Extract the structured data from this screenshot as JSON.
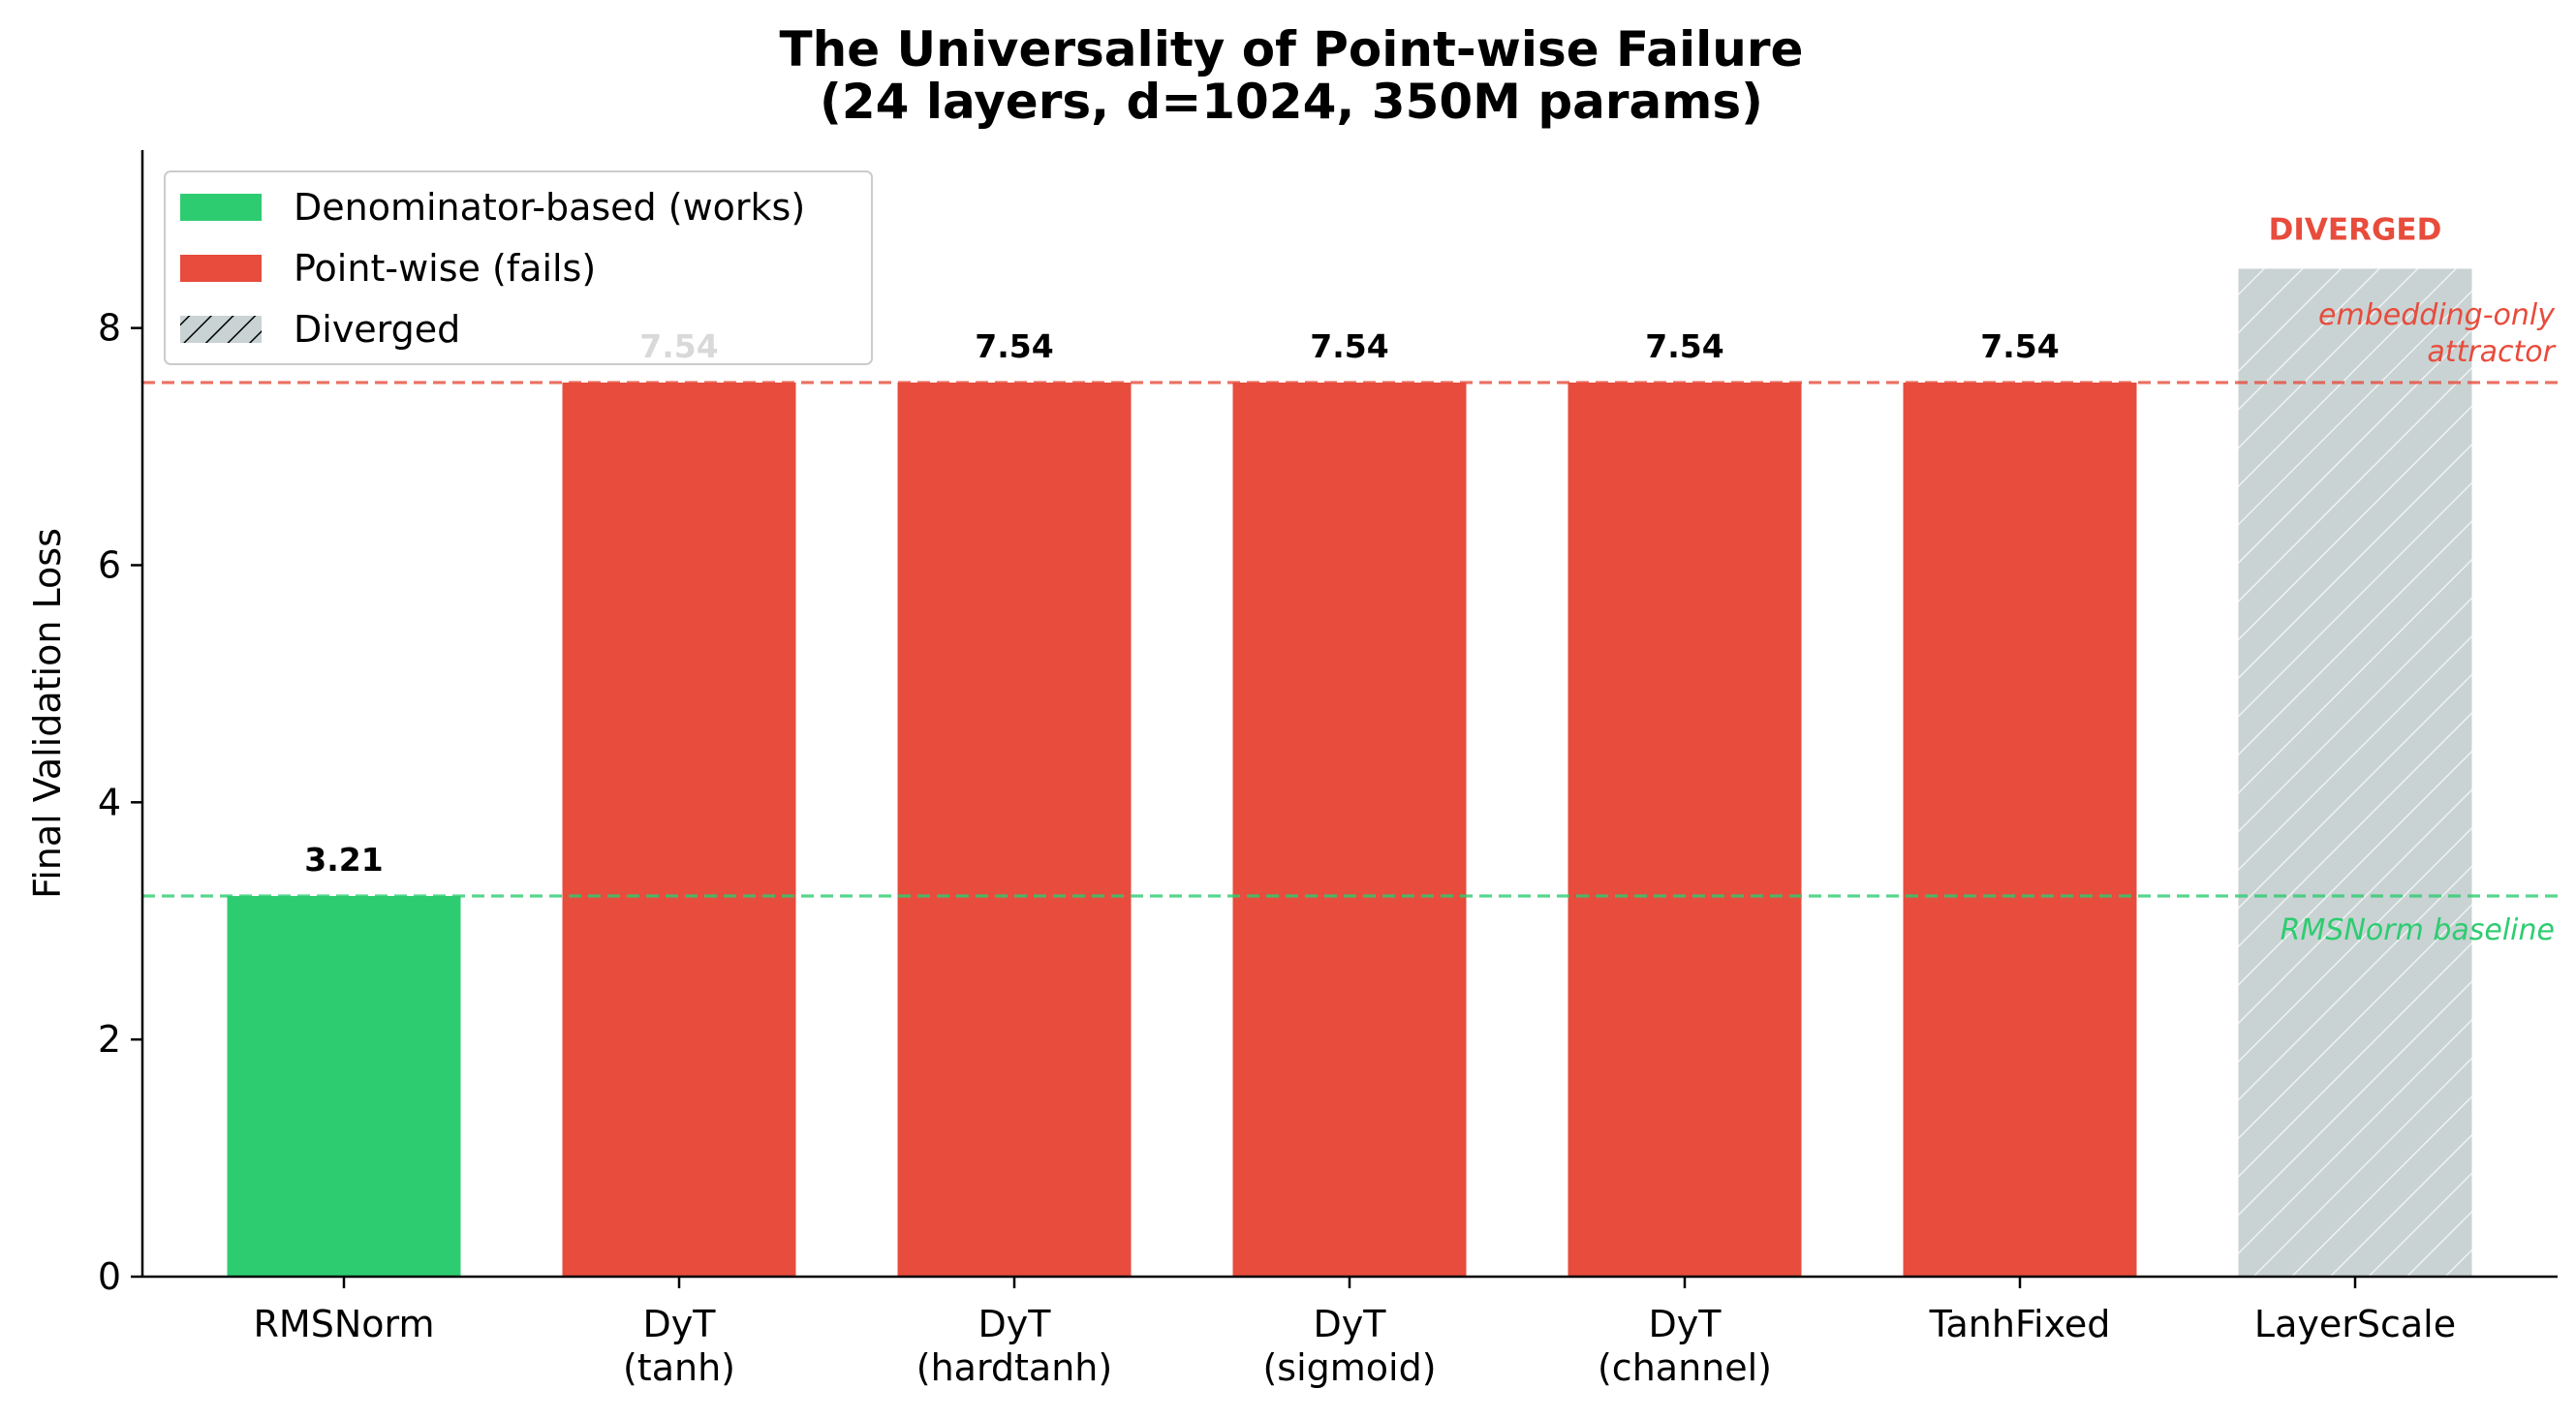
{
  "chart_data": {
    "type": "bar",
    "title_lines": [
      "The Universality of Point-wise Failure",
      "(24 layers, d=1024, 350M params)"
    ],
    "xlabel": "",
    "ylabel": "Final Validation Loss",
    "ylim": [
      0,
      9.5
    ],
    "yticks": [
      0,
      2,
      4,
      6,
      8
    ],
    "grid": false,
    "legend_position": "top-left",
    "categories": [
      {
        "label_lines": [
          "RMSNorm"
        ]
      },
      {
        "label_lines": [
          "DyT",
          "(tanh)"
        ]
      },
      {
        "label_lines": [
          "DyT",
          "(hardtanh)"
        ]
      },
      {
        "label_lines": [
          "DyT",
          "(sigmoid)"
        ]
      },
      {
        "label_lines": [
          "DyT",
          "(channel)"
        ]
      },
      {
        "label_lines": [
          "TanhFixed"
        ]
      },
      {
        "label_lines": [
          "LayerScale"
        ]
      }
    ],
    "bars": [
      {
        "value": 3.21,
        "label": "3.21",
        "group": "denominator"
      },
      {
        "value": 7.54,
        "label": "7.54",
        "group": "pointwise"
      },
      {
        "value": 7.54,
        "label": "7.54",
        "group": "pointwise"
      },
      {
        "value": 7.54,
        "label": "7.54",
        "group": "pointwise"
      },
      {
        "value": 7.54,
        "label": "7.54",
        "group": "pointwise"
      },
      {
        "value": 7.54,
        "label": "7.54",
        "group": "pointwise"
      },
      {
        "value": 8.5,
        "label": "DIVERGED",
        "group": "diverged"
      }
    ],
    "legend": [
      {
        "key": "denominator",
        "label": "Denominator-based (works)",
        "color": "#2ecc71"
      },
      {
        "key": "pointwise",
        "label": "Point-wise (fails)",
        "color": "#e74c3c"
      },
      {
        "key": "diverged",
        "label": "Diverged",
        "color": "#c9d3d3"
      }
    ],
    "reference_lines": [
      {
        "y": 7.54,
        "label_lines": [
          "embedding-only",
          "attractor"
        ],
        "color": "#e74c3c"
      },
      {
        "y": 3.21,
        "label_lines": [
          "RMSNorm baseline"
        ],
        "color": "#2ecc71"
      }
    ],
    "colors": {
      "denominator": "#2ecc71",
      "pointwise": "#e74c3c",
      "diverged": "#c9d3d3",
      "diverged_text": "#e74c3c"
    }
  }
}
